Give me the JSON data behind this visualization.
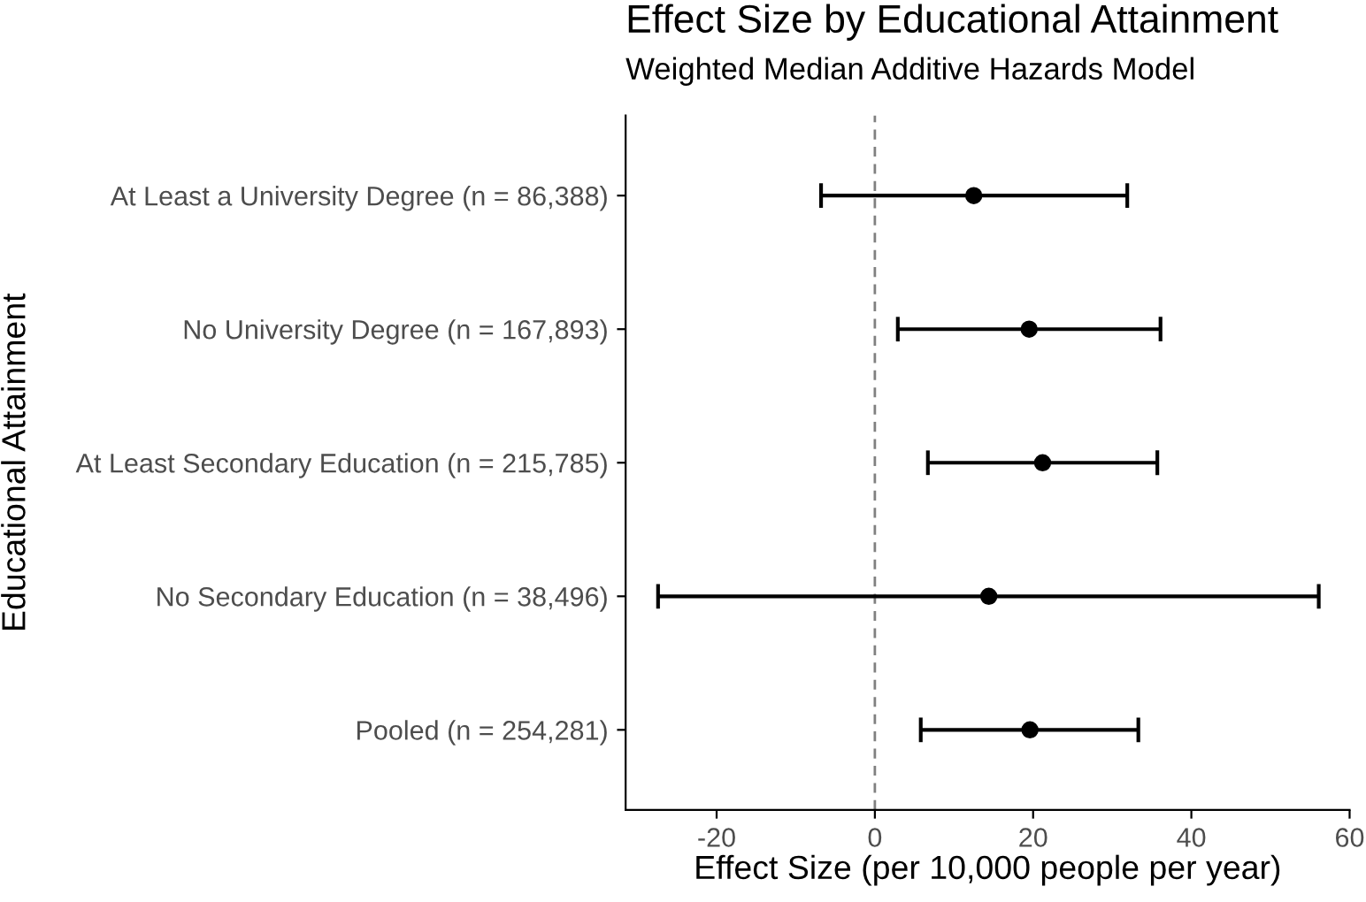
{
  "chart_data": {
    "type": "scatter",
    "orientation": "horizontal",
    "title": "Effect Size by Educational Attainment",
    "subtitle": "Weighted Median Additive Hazards Model",
    "xlabel": "Effect Size (per 10,000 people per year)",
    "ylabel": "Educational Attainment",
    "categories": [
      "At Least a University Degree (n = 86,388)",
      "No University Degree (n = 167,893)",
      "At Least Secondary Education (n = 215,785)",
      "No Secondary Education (n = 38,496)",
      "Pooled (n = 254,281)"
    ],
    "series": [
      {
        "color": "#000000",
        "values": [
          12.5,
          19.5,
          21.2,
          14.4,
          19.6
        ],
        "errors": [
          [
            -6.8,
            31.9
          ],
          [
            2.9,
            36.1
          ],
          [
            6.7,
            35.7
          ],
          [
            -27.4,
            56.1
          ],
          [
            5.8,
            33.3
          ]
        ]
      }
    ],
    "xlim": [
      -31.5,
      60
    ],
    "xticks": [
      -20,
      0,
      20,
      40,
      60
    ],
    "ref_lines": [
      {
        "axis": "x",
        "value": 0,
        "color": "#808080",
        "line_style": "dashed"
      }
    ],
    "marker": "circle",
    "grid": false,
    "legend": false
  }
}
